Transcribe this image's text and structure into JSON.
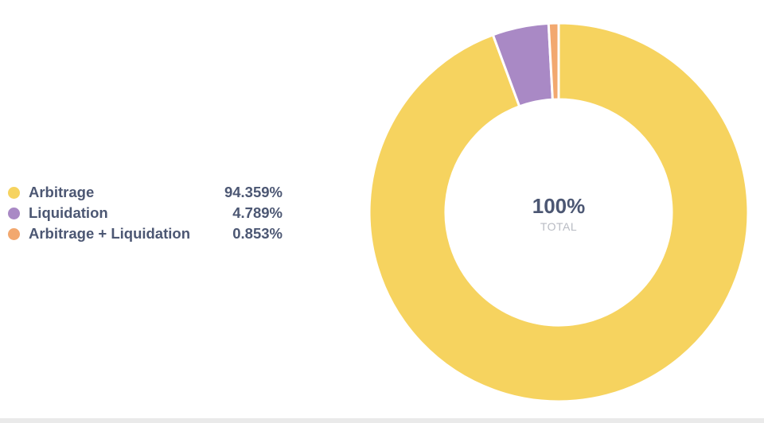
{
  "chart_data": {
    "type": "pie",
    "donut": true,
    "categories": [
      "Arbitrage",
      "Liquidation",
      "Arbitrage + Liquidation"
    ],
    "values": [
      94.359,
      4.789,
      0.853
    ],
    "value_labels": [
      "94.359%",
      "4.789%",
      "0.853%"
    ],
    "colors": [
      "#f6d35f",
      "#a989c5",
      "#f2a86f"
    ],
    "center_value": "100%",
    "center_label": "TOTAL",
    "legend_position": "left"
  }
}
